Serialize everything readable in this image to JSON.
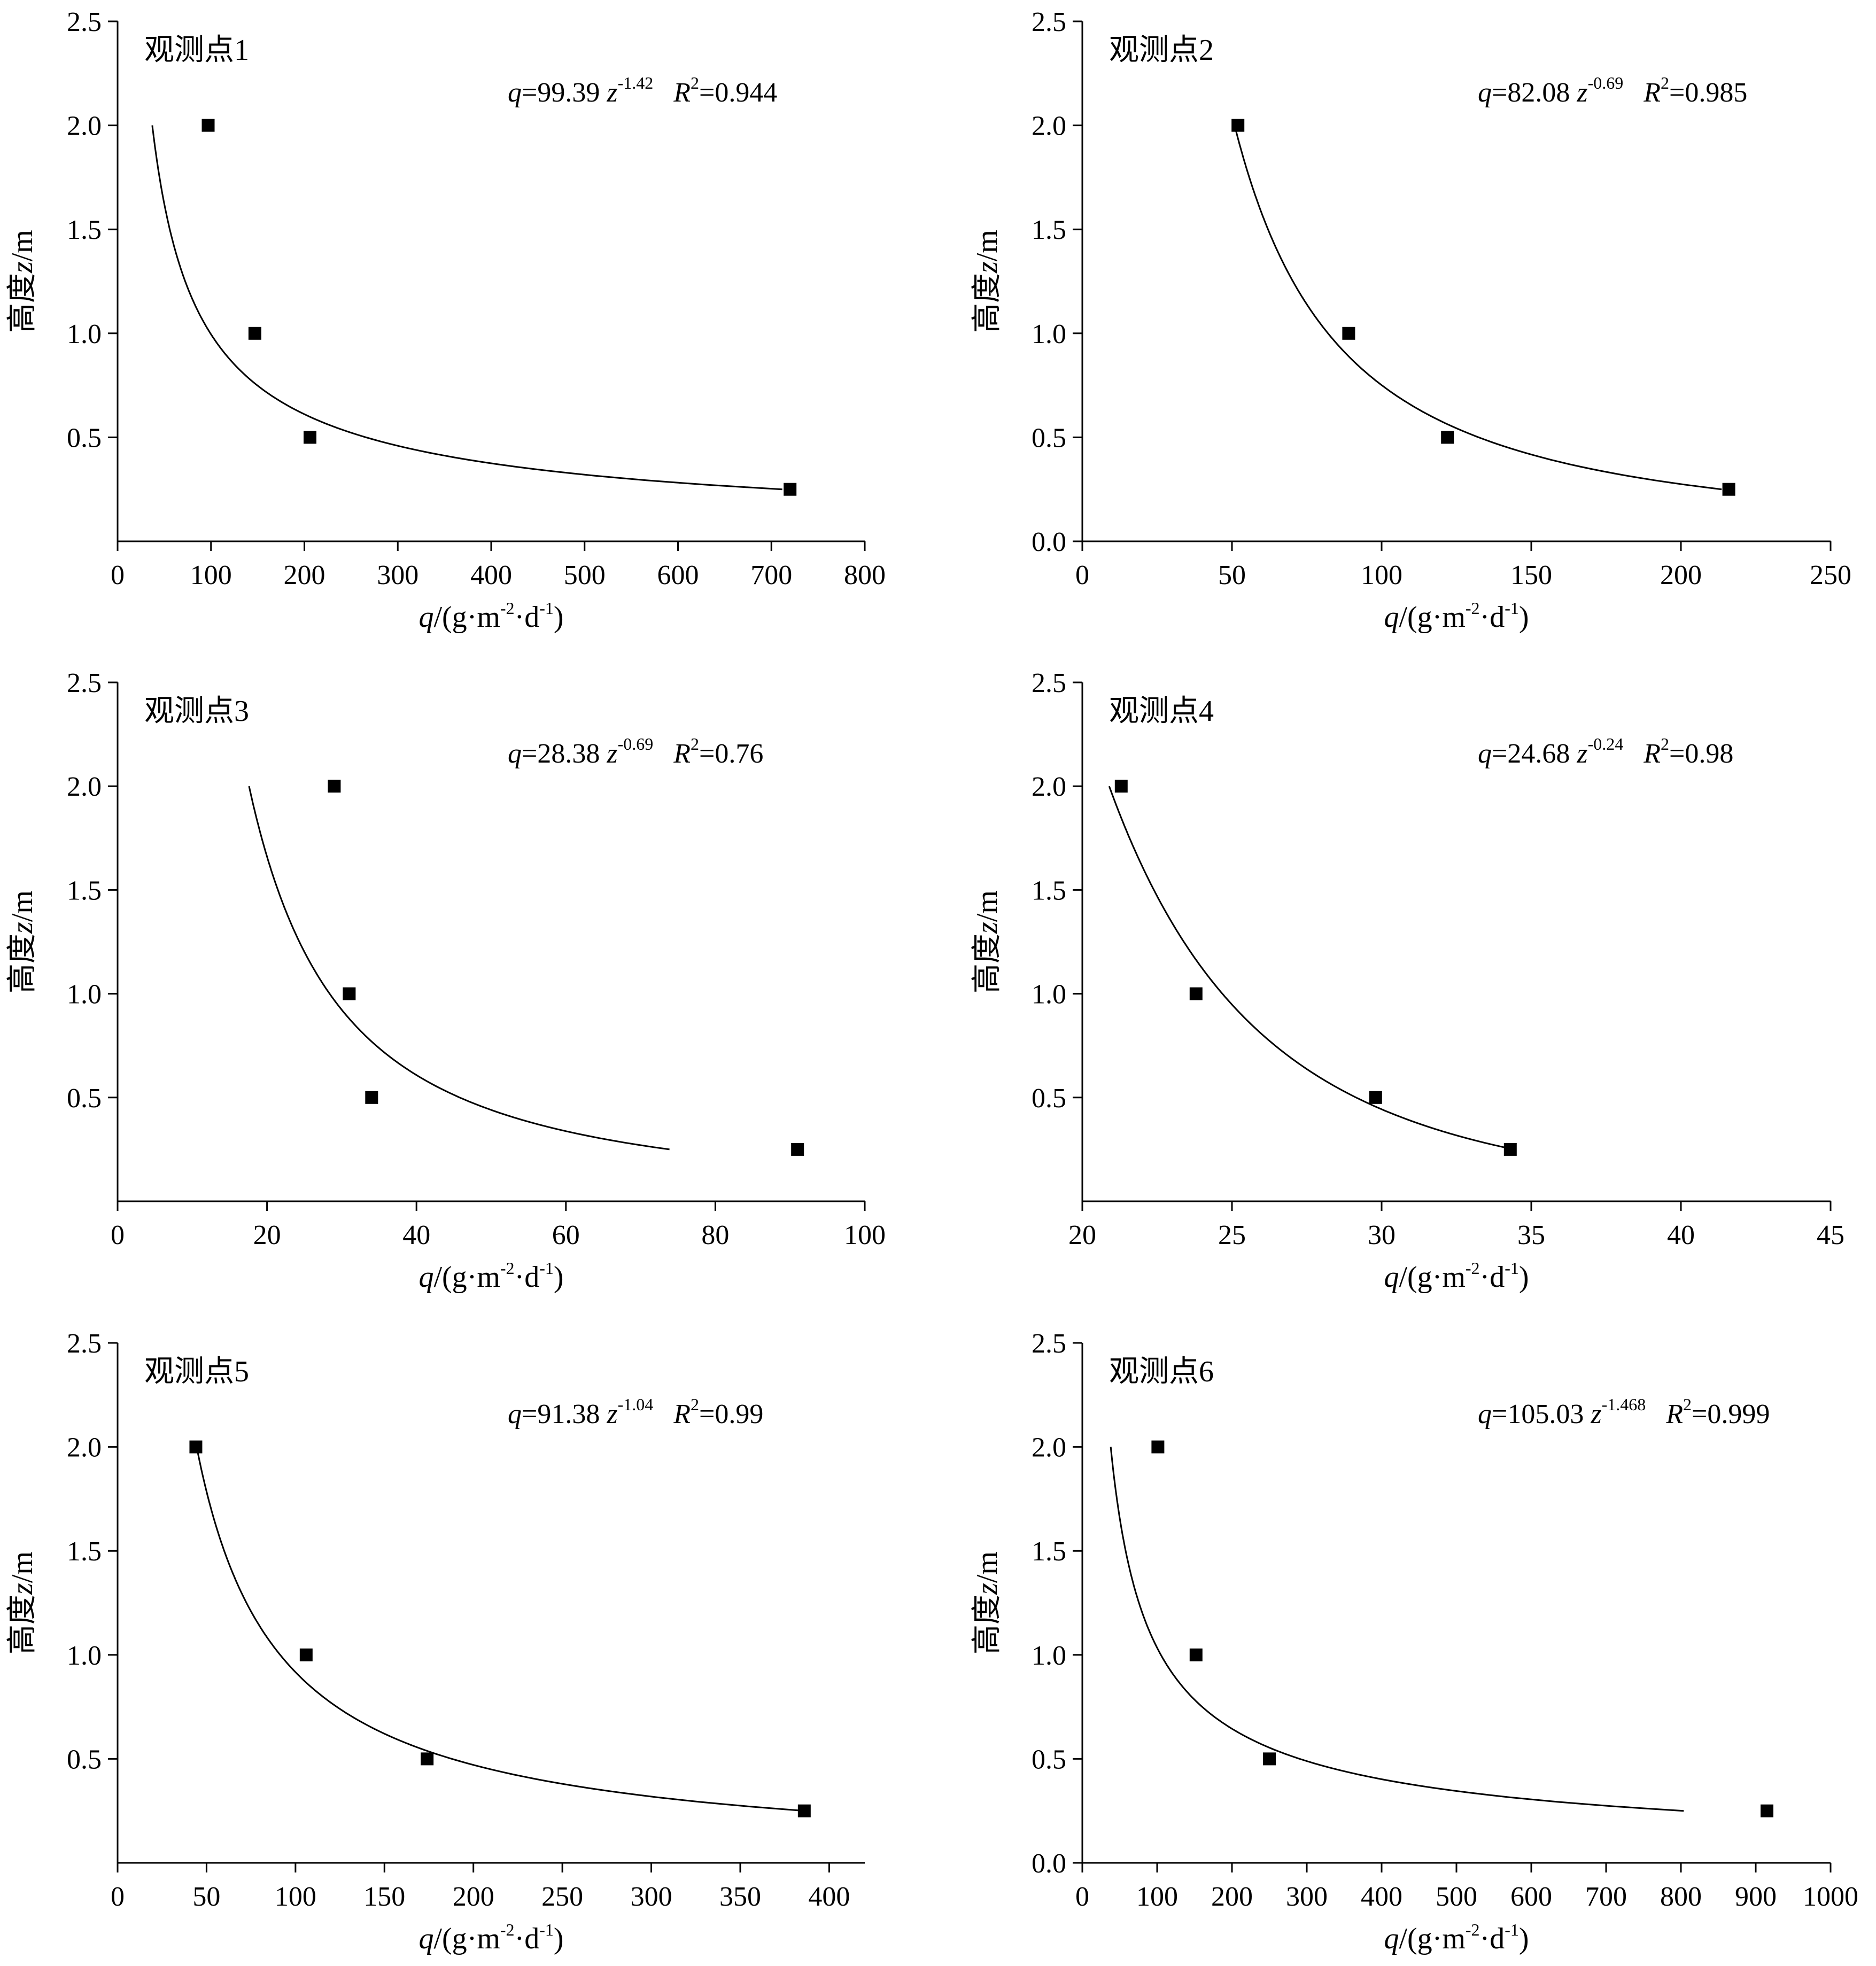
{
  "chart_data": [
    {
      "type": "scatter",
      "title": "观测点1",
      "equation": {
        "lhs": "q",
        "eq": "=99.39 ",
        "var": "z",
        "exp": "-1.42",
        "r_label": "R",
        "r_sup": "2",
        "r_value": "=0.944"
      },
      "fit": {
        "coef": 99.39,
        "exp": -1.42
      },
      "xlabel": {
        "var": "q",
        "rest1": "/(g·m",
        "s1": "-2",
        "rest2": "·d",
        "s2": "-1",
        "rest3": ")"
      },
      "ylabel": {
        "pre": "高度",
        "var": "z",
        "post": "/m"
      },
      "xlim": [
        0,
        800
      ],
      "ylim": [
        0,
        2.5
      ],
      "xticks": [
        "0",
        "100",
        "200",
        "300",
        "400",
        "500",
        "600",
        "700",
        "800"
      ],
      "yticks": [
        "0.5",
        "1.0",
        "1.5",
        "2.0",
        "2.5"
      ],
      "points": [
        [
          97,
          2.0
        ],
        [
          147,
          1.0
        ],
        [
          206,
          0.5
        ],
        [
          720,
          0.25
        ]
      ]
    },
    {
      "type": "scatter",
      "title": "观测点2",
      "equation": {
        "lhs": "q",
        "eq": "=82.08 ",
        "var": "z",
        "exp": "-0.69",
        "r_label": "R",
        "r_sup": "2",
        "r_value": "=0.985"
      },
      "fit": {
        "coef": 82.08,
        "exp": -0.69
      },
      "xlabel": {
        "var": "q",
        "rest1": "/(g·m",
        "s1": "-2",
        "rest2": "·d",
        "s2": "-1",
        "rest3": ")"
      },
      "ylabel": {
        "pre": "高度",
        "var": "z",
        "post": "/m"
      },
      "xlim": [
        0,
        250
      ],
      "ylim": [
        0,
        2.5
      ],
      "xticks": [
        "0",
        "50",
        "100",
        "150",
        "200",
        "250"
      ],
      "yticks": [
        "0.0",
        "0.5",
        "1.0",
        "1.5",
        "2.0",
        "2.5"
      ],
      "points": [
        [
          52,
          2.0
        ],
        [
          89,
          1.0
        ],
        [
          122,
          0.5
        ],
        [
          216,
          0.25
        ]
      ]
    },
    {
      "type": "scatter",
      "title": "观测点3",
      "equation": {
        "lhs": "q",
        "eq": "=28.38 ",
        "var": "z",
        "exp": "-0.69",
        "r_label": "R",
        "r_sup": "2",
        "r_value": "=0.76"
      },
      "fit": {
        "coef": 28.38,
        "exp": -0.69
      },
      "xlabel": {
        "var": "q",
        "rest1": "/(g·m",
        "s1": "-2",
        "rest2": "·d",
        "s2": "-1",
        "rest3": ")"
      },
      "ylabel": {
        "pre": "高度",
        "var": "z",
        "post": "/m"
      },
      "xlim": [
        0,
        100
      ],
      "ylim": [
        0,
        2.5
      ],
      "xticks": [
        "0",
        "20",
        "40",
        "60",
        "80",
        "100"
      ],
      "yticks": [
        "0.5",
        "1.0",
        "1.5",
        "2.0",
        "2.5"
      ],
      "points": [
        [
          29,
          2.0
        ],
        [
          31,
          1.0
        ],
        [
          34,
          0.5
        ],
        [
          91,
          0.25
        ]
      ]
    },
    {
      "type": "scatter",
      "title": "观测点4",
      "equation": {
        "lhs": "q",
        "eq": "=24.68 ",
        "var": "z",
        "exp": "-0.24",
        "r_label": "R",
        "r_sup": "2",
        "r_value": "=0.98"
      },
      "fit": {
        "coef": 24.68,
        "exp": -0.24
      },
      "xlabel": {
        "var": "q",
        "rest1": "/(g·m",
        "s1": "-2",
        "rest2": "·d",
        "s2": "-1",
        "rest3": ")"
      },
      "ylabel": {
        "pre": "高度",
        "var": "z",
        "post": "/m"
      },
      "xlim": [
        20,
        45
      ],
      "ylim": [
        0,
        2.5
      ],
      "xticks": [
        "20",
        "25",
        "30",
        "35",
        "40",
        "45"
      ],
      "yticks": [
        "0.5",
        "1.0",
        "1.5",
        "2.0",
        "2.5"
      ],
      "points": [
        [
          21.3,
          2.0
        ],
        [
          23.8,
          1.0
        ],
        [
          29.8,
          0.5
        ],
        [
          34.3,
          0.25
        ]
      ]
    },
    {
      "type": "scatter",
      "title": "观测点5",
      "equation": {
        "lhs": "q",
        "eq": "=91.38 ",
        "var": "z",
        "exp": "-1.04",
        "r_label": "R",
        "r_sup": "2",
        "r_value": "=0.99"
      },
      "fit": {
        "coef": 91.38,
        "exp": -1.04
      },
      "xlabel": {
        "var": "q",
        "rest1": "/(g·m",
        "s1": "-2",
        "rest2": "·d",
        "s2": "-1",
        "rest3": ")"
      },
      "ylabel": {
        "pre": "高度",
        "var": "z",
        "post": "/m"
      },
      "xlim": [
        0,
        420
      ],
      "ylim": [
        0,
        2.5
      ],
      "xticks": [
        "0",
        "50",
        "100",
        "150",
        "200",
        "250",
        "300",
        "350",
        "400"
      ],
      "yticks": [
        "0.5",
        "1.0",
        "1.5",
        "2.0",
        "2.5"
      ],
      "points": [
        [
          44,
          2.0
        ],
        [
          106,
          1.0
        ],
        [
          174,
          0.5
        ],
        [
          386,
          0.25
        ]
      ]
    },
    {
      "type": "scatter",
      "title": "观测点6",
      "equation": {
        "lhs": "q",
        "eq": "=105.03 ",
        "var": "z",
        "exp": "-1.468",
        "r_label": "R",
        "r_sup": "2",
        "r_value": "=0.999"
      },
      "fit": {
        "coef": 105.03,
        "exp": -1.468
      },
      "xlabel": {
        "var": "q",
        "rest1": "/(g·m",
        "s1": "-2",
        "rest2": "·d",
        "s2": "-1",
        "rest3": ")"
      },
      "ylabel": {
        "pre": "高度",
        "var": "z",
        "post": "/m"
      },
      "xlim": [
        0,
        1000
      ],
      "ylim": [
        0,
        2.5
      ],
      "xticks": [
        "0",
        "100",
        "200",
        "300",
        "400",
        "500",
        "600",
        "700",
        "800",
        "900",
        "1000"
      ],
      "yticks": [
        "0.0",
        "0.5",
        "1.0",
        "1.5",
        "2.0",
        "2.5"
      ],
      "points": [
        [
          101,
          2.0
        ],
        [
          152,
          1.0
        ],
        [
          250,
          0.5
        ],
        [
          915,
          0.25
        ]
      ]
    }
  ]
}
